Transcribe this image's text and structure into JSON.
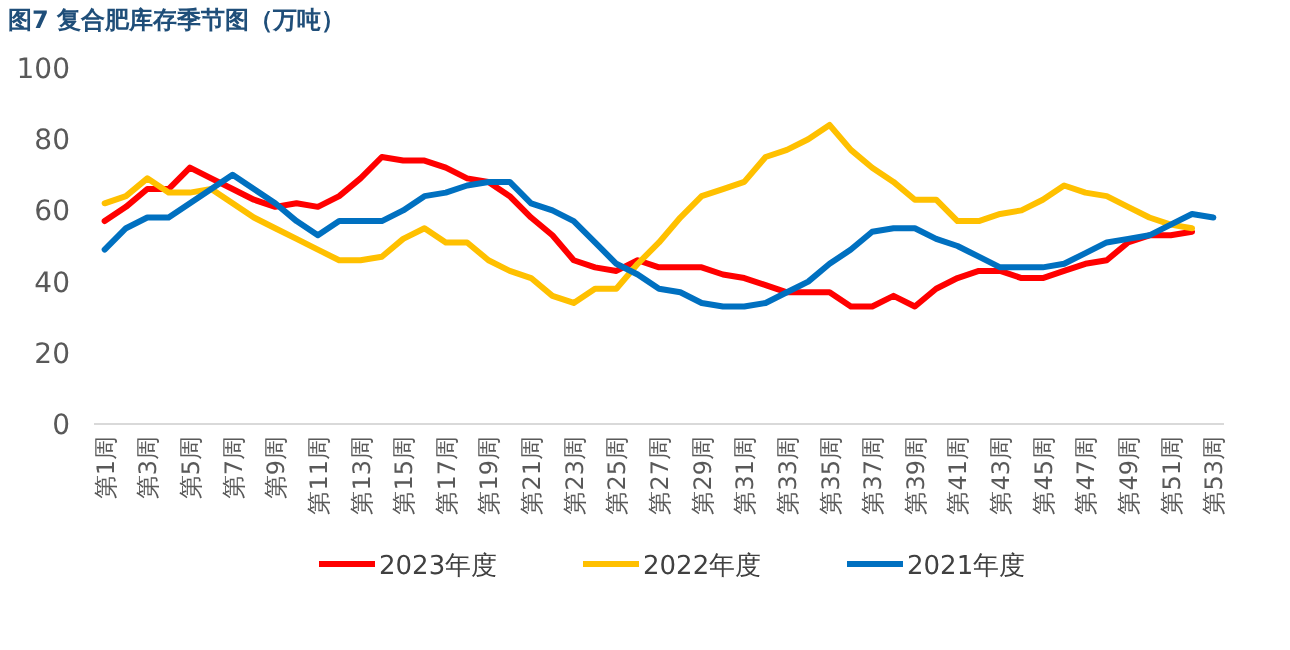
{
  "chart_data": {
    "type": "line",
    "title": "图7  复合肥库存季节图（万吨）",
    "categories": [
      "第1周",
      null,
      "第3周",
      null,
      "第5周",
      null,
      "第7周",
      null,
      "第9周",
      null,
      "第11周",
      null,
      "第13周",
      null,
      "第15周",
      null,
      "第17周",
      null,
      "第19周",
      null,
      "第21周",
      null,
      "第23周",
      null,
      "第25周",
      null,
      "第27周",
      null,
      "第29周",
      null,
      "第31周",
      null,
      "第33周",
      null,
      "第35周",
      null,
      "第37周",
      null,
      "第39周",
      null,
      "第41周",
      null,
      "第43周",
      null,
      "第45周",
      null,
      "第47周",
      null,
      "第49周",
      null,
      "第51周",
      null,
      "第53周"
    ],
    "series": [
      {
        "name": "2023年度",
        "color": "#ff0000",
        "values": [
          57,
          61,
          66,
          66,
          72,
          69,
          66,
          63,
          61,
          62,
          61,
          64,
          69,
          75,
          74,
          74,
          72,
          69,
          68,
          64,
          58,
          53,
          46,
          44,
          43,
          46,
          44,
          44,
          44,
          42,
          41,
          39,
          37,
          37,
          37,
          33,
          33,
          36,
          33,
          38,
          41,
          43,
          43,
          41,
          41,
          43,
          45,
          46,
          51,
          53,
          53,
          54,
          null
        ]
      },
      {
        "name": "2022年度",
        "color": "#ffc000",
        "values": [
          62,
          64,
          69,
          65,
          65,
          66,
          62,
          58,
          55,
          52,
          49,
          46,
          46,
          47,
          52,
          55,
          51,
          51,
          46,
          43,
          41,
          36,
          34,
          38,
          38,
          45,
          51,
          58,
          64,
          66,
          68,
          75,
          77,
          80,
          84,
          77,
          72,
          68,
          63,
          63,
          57,
          57,
          59,
          60,
          63,
          67,
          65,
          64,
          61,
          58,
          56,
          55,
          null
        ]
      },
      {
        "name": "2021年度",
        "color": "#0070c0",
        "values": [
          49,
          55,
          58,
          58,
          62,
          66,
          70,
          66,
          62,
          57,
          53,
          57,
          57,
          57,
          60,
          64,
          65,
          67,
          68,
          68,
          62,
          60,
          57,
          51,
          45,
          42,
          38,
          37,
          34,
          33,
          33,
          34,
          37,
          40,
          45,
          49,
          54,
          55,
          55,
          52,
          50,
          47,
          44,
          44,
          44,
          45,
          48,
          51,
          52,
          53,
          56,
          59,
          58
        ]
      }
    ],
    "ylim": [
      0,
      100
    ],
    "yticks": [
      0,
      20,
      40,
      60,
      80,
      100
    ],
    "legend": "bottom"
  }
}
